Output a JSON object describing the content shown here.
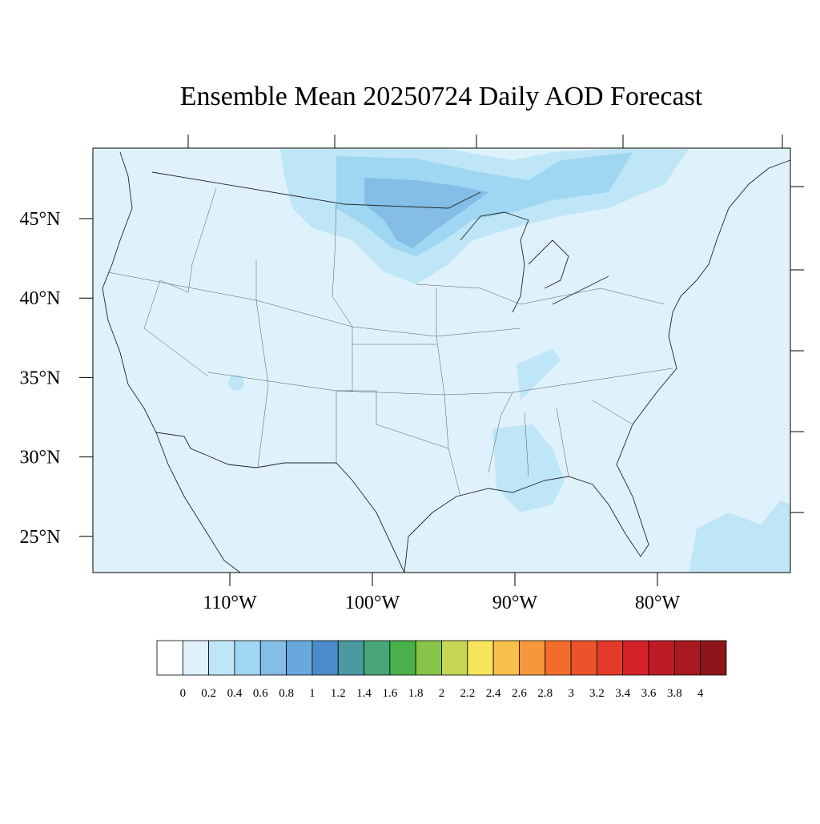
{
  "title": "Ensemble Mean 20250724 Daily AOD Forecast",
  "map": {
    "lat_labels": [
      "45°N",
      "40°N",
      "35°N",
      "30°N",
      "25°N"
    ],
    "lon_labels": [
      "110°W",
      "100°W",
      "90°W",
      "80°W"
    ]
  },
  "colorbar": {
    "levels": [
      0,
      0.2,
      0.4,
      0.6,
      0.8,
      1,
      1.2,
      1.4,
      1.6,
      1.8,
      2,
      2.2,
      2.4,
      2.6,
      2.8,
      3,
      3.2,
      3.4,
      3.6,
      3.8,
      4
    ],
    "colors": [
      "#ffffff",
      "#dff2fb",
      "#bfe6f7",
      "#9fd7f3",
      "#84bde6",
      "#69a8dc",
      "#4a8cc9",
      "#4a9aa0",
      "#48a676",
      "#4ab04a",
      "#86c44a",
      "#c5d655",
      "#f7e55c",
      "#f8bf4a",
      "#f5983c",
      "#f26d2c",
      "#ea532b",
      "#e23b2a",
      "#d42228",
      "#be1c24",
      "#a81a20",
      "#8e151a"
    ]
  }
}
